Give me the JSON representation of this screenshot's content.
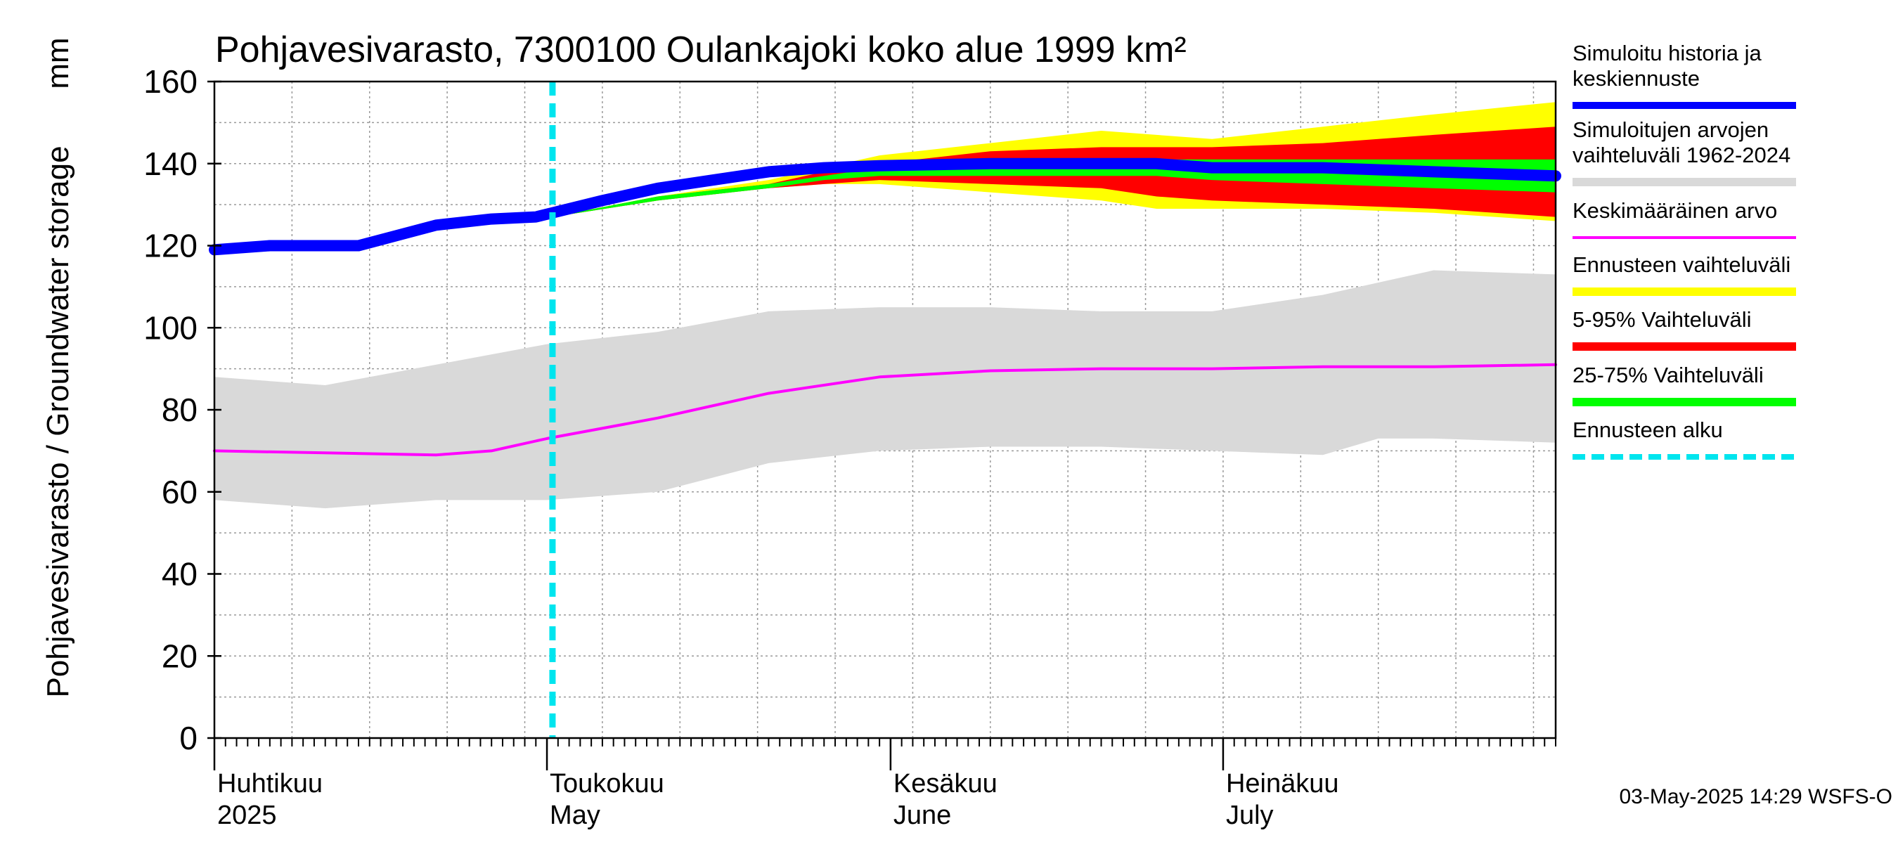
{
  "chart_data": {
    "type": "area",
    "title": "Pohjavesivarasto, 7300100 Oulankajoki koko alue 1999 km²",
    "ylabel": "Pohjavesivarasto / Groundwater storage",
    "yunit": "mm",
    "ylim": [
      0,
      160
    ],
    "yticks": [
      0,
      20,
      40,
      60,
      80,
      100,
      120,
      140,
      160
    ],
    "xlim": [
      0,
      121
    ],
    "x_unit": "days since 2025-04-01",
    "forecast_start_day": 30.5,
    "grid": true,
    "months": [
      {
        "day": 0,
        "fi": "Huhtikuu",
        "en": "2025"
      },
      {
        "day": 30,
        "fi": "Toukokuu",
        "en": "May"
      },
      {
        "day": 61,
        "fi": "Kesäkuu",
        "en": "June"
      },
      {
        "day": 91,
        "fi": "Heinäkuu",
        "en": "July"
      }
    ],
    "series": [
      {
        "name": "Simuloitujen arvojen vaihteluväli 1962-2024",
        "kind": "band",
        "color": "#d9d9d9",
        "x": [
          0,
          10,
          20,
          30,
          40,
          50,
          60,
          70,
          80,
          90,
          100,
          105,
          110,
          121
        ],
        "low": [
          58,
          56,
          58,
          58,
          60,
          67,
          70,
          71,
          71,
          70,
          69,
          73,
          73,
          72
        ],
        "high": [
          88,
          86,
          91,
          96,
          99,
          104,
          105,
          105,
          104,
          104,
          108,
          111,
          114,
          113
        ]
      },
      {
        "name": "Ennusteen vaihteluväli",
        "kind": "band",
        "color": "#ffff00",
        "x": [
          30.5,
          40,
          50,
          55,
          60,
          70,
          80,
          85,
          90,
          100,
          110,
          121
        ],
        "low": [
          127,
          131,
          134,
          135,
          135,
          133,
          131,
          129,
          129,
          129,
          128,
          126
        ],
        "high": [
          127,
          132,
          136,
          139,
          142,
          145,
          148,
          147,
          146,
          149,
          152,
          155
        ]
      },
      {
        "name": "5-95% Vaihteluväli",
        "kind": "band",
        "color": "#ff0000",
        "x": [
          30.5,
          40,
          50,
          55,
          60,
          70,
          80,
          85,
          90,
          100,
          110,
          121
        ],
        "low": [
          127,
          131,
          134,
          135,
          136,
          135,
          134,
          132,
          131,
          130,
          129,
          127
        ],
        "high": [
          127,
          132,
          135,
          138,
          140,
          143,
          144,
          144,
          144,
          145,
          147,
          149
        ]
      },
      {
        "name": "25-75% Vaihteluväli",
        "kind": "band",
        "color": "#00ff00",
        "x": [
          30.5,
          40,
          50,
          55,
          60,
          70,
          80,
          85,
          90,
          100,
          110,
          121
        ],
        "low": [
          127,
          131,
          134,
          136,
          137,
          137,
          137,
          137,
          136,
          135,
          134,
          133
        ],
        "high": [
          127,
          132,
          135,
          137,
          139,
          140,
          141,
          141,
          141,
          141,
          141,
          141
        ]
      },
      {
        "name": "Keskimääräinen arvo",
        "kind": "line",
        "color": "#ff00ff",
        "x": [
          0,
          10,
          20,
          25,
          30,
          40,
          50,
          60,
          70,
          80,
          90,
          100,
          110,
          121
        ],
        "y": [
          70,
          69.5,
          69,
          70,
          73,
          78,
          84,
          88,
          89.5,
          90,
          90,
          90.5,
          90.5,
          91
        ]
      },
      {
        "name": "Simuloitu historia ja keskiennuste",
        "kind": "line",
        "color": "#0000ff",
        "x": [
          0,
          5,
          13,
          20,
          25,
          29,
          30.5,
          35,
          40,
          45,
          50,
          55,
          60,
          70,
          80,
          85,
          90,
          100,
          110,
          121
        ],
        "y": [
          119,
          120,
          120,
          125,
          126.5,
          127,
          128,
          131,
          134,
          136,
          138,
          139,
          139.5,
          140,
          140,
          140,
          139,
          139,
          138,
          137
        ]
      }
    ],
    "legend": [
      {
        "label": "Simuloitu historia ja keskiennuste",
        "color": "#0000ff",
        "style": "thick"
      },
      {
        "label": "Simuloitujen arvojen vaihteluväli 1962-2024",
        "color": "#d9d9d9",
        "style": "band"
      },
      {
        "label": "Keskimääräinen arvo",
        "color": "#ff00ff",
        "style": "thin"
      },
      {
        "label": "Ennusteen vaihteluväli",
        "color": "#ffff00",
        "style": "band"
      },
      {
        "label": "5-95% Vaihteluväli",
        "color": "#ff0000",
        "style": "band"
      },
      {
        "label": "25-75% Vaihteluväli",
        "color": "#00ff00",
        "style": "band"
      },
      {
        "label": "Ennusteen alku",
        "color": "#00e5ee",
        "style": "dashed"
      }
    ],
    "forecast_line_color": "#00e5ee",
    "timestamp": "03-May-2025 14:29 WSFS-O"
  }
}
